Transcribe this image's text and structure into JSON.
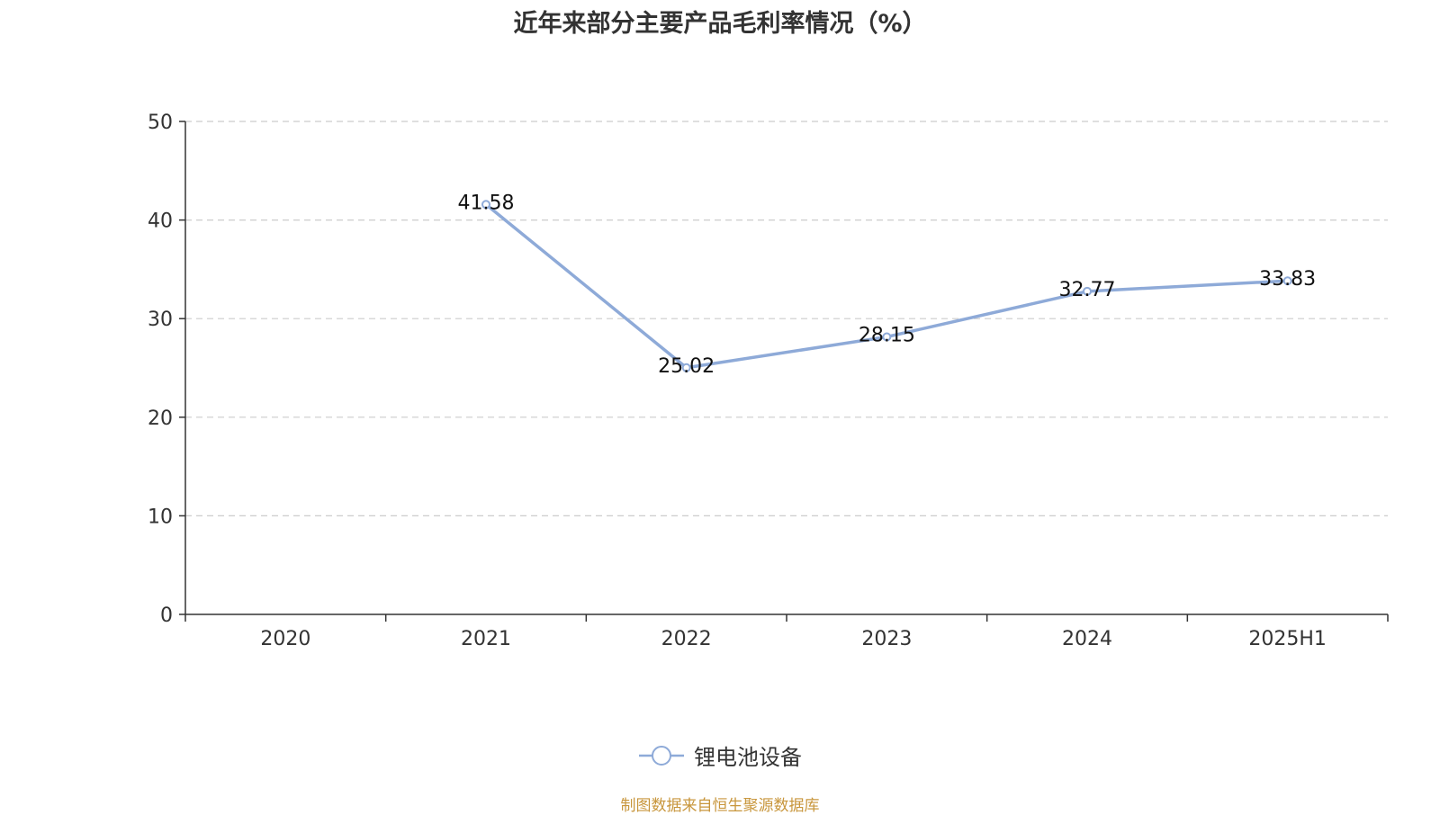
{
  "chart_data": {
    "type": "line",
    "title": "近年来部分主要产品毛利率情况（%）",
    "xlabel": "",
    "ylabel": "",
    "categories": [
      "2020",
      "2021",
      "2022",
      "2023",
      "2024",
      "2025H1"
    ],
    "ylim": [
      0,
      50
    ],
    "yticks": [
      0,
      10,
      20,
      30,
      40,
      50
    ],
    "grid": true,
    "legend_position": "bottom",
    "series": [
      {
        "name": "锂电池设备",
        "color": "#8eaad8",
        "values": [
          null,
          41.58,
          25.02,
          28.15,
          32.77,
          33.83
        ],
        "labels": [
          "",
          "41.58",
          "25.02",
          "28.15",
          "32.77",
          "33.83"
        ]
      }
    ]
  },
  "source_note": "制图数据来自恒生聚源数据库"
}
